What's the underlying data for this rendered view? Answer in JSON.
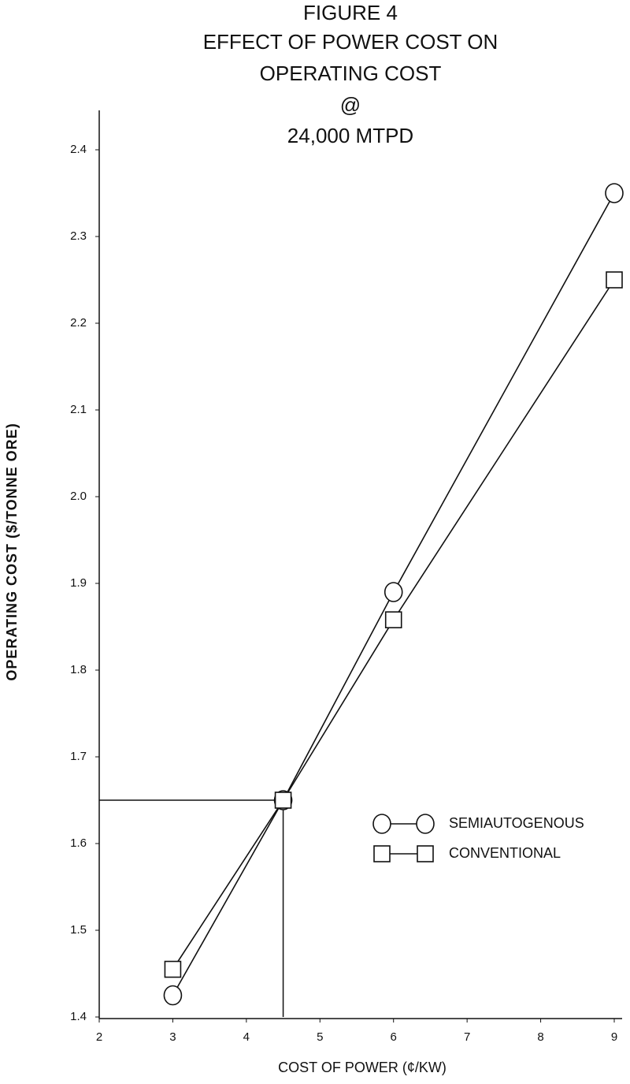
{
  "chart_data": {
    "type": "line",
    "title": [
      "FIGURE 4",
      "EFFECT OF POWER COST ON",
      "OPERATING COST",
      "@",
      "24,000 MTPD"
    ],
    "x_label": "COST OF POWER (¢/KW)",
    "y_label": "OPERATING COST ($/TONNE ORE)",
    "x": [
      3,
      4.5,
      6,
      9
    ],
    "series": [
      {
        "name": "SEMIAUTOGENOUS",
        "color": "#111111",
        "marker": "circle",
        "values": [
          1.425,
          1.65,
          1.89,
          2.35
        ]
      },
      {
        "name": "CONVENTIONAL",
        "color": "#111111",
        "marker": "square",
        "values": [
          1.455,
          1.65,
          1.858,
          2.25
        ]
      }
    ],
    "reference_lines": {
      "x": 4.5,
      "y": 1.65
    },
    "xlim": [
      2,
      9
    ],
    "xticks": [
      2,
      3,
      4,
      5,
      6,
      7,
      8,
      9
    ],
    "ylim": [
      1.4,
      2.4
    ],
    "yticks": [
      1.4,
      1.5,
      1.6,
      1.7,
      1.8,
      1.9,
      {
        "value": 2,
        "label": "2.0"
      },
      2.1,
      2.2,
      2.3,
      2.4
    ],
    "grid": false,
    "legend": "lower-right"
  }
}
